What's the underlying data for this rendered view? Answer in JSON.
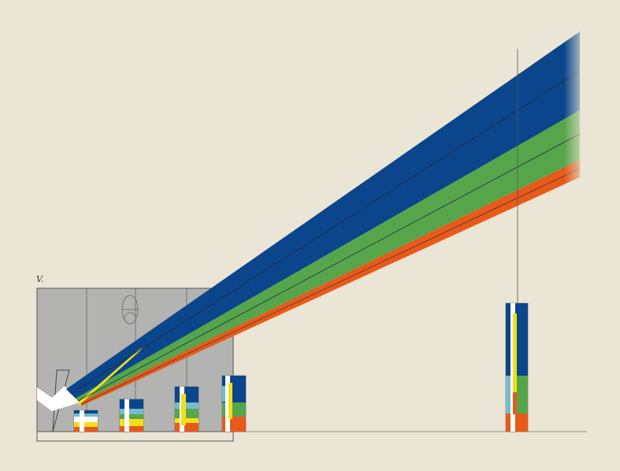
{
  "plate": {
    "label": "V."
  },
  "colors": {
    "background": "#eae5d4",
    "box_fill": "#b3b3b1",
    "white_band": "#ffffff",
    "yellow_band": "#f2df1b",
    "cyan_band": "#76bccc",
    "blue_band": "#0b468c",
    "green_band": "#57a54b",
    "orange_band": "#e75a1a",
    "guide_line": "#555555"
  },
  "bands": [
    "blue",
    "green",
    "orange"
  ],
  "spectrum_columns": [
    {
      "name": "spectrum-column-1"
    },
    {
      "name": "spectrum-column-2"
    },
    {
      "name": "spectrum-column-3"
    },
    {
      "name": "spectrum-column-4"
    },
    {
      "name": "spectrum-column-far"
    }
  ]
}
